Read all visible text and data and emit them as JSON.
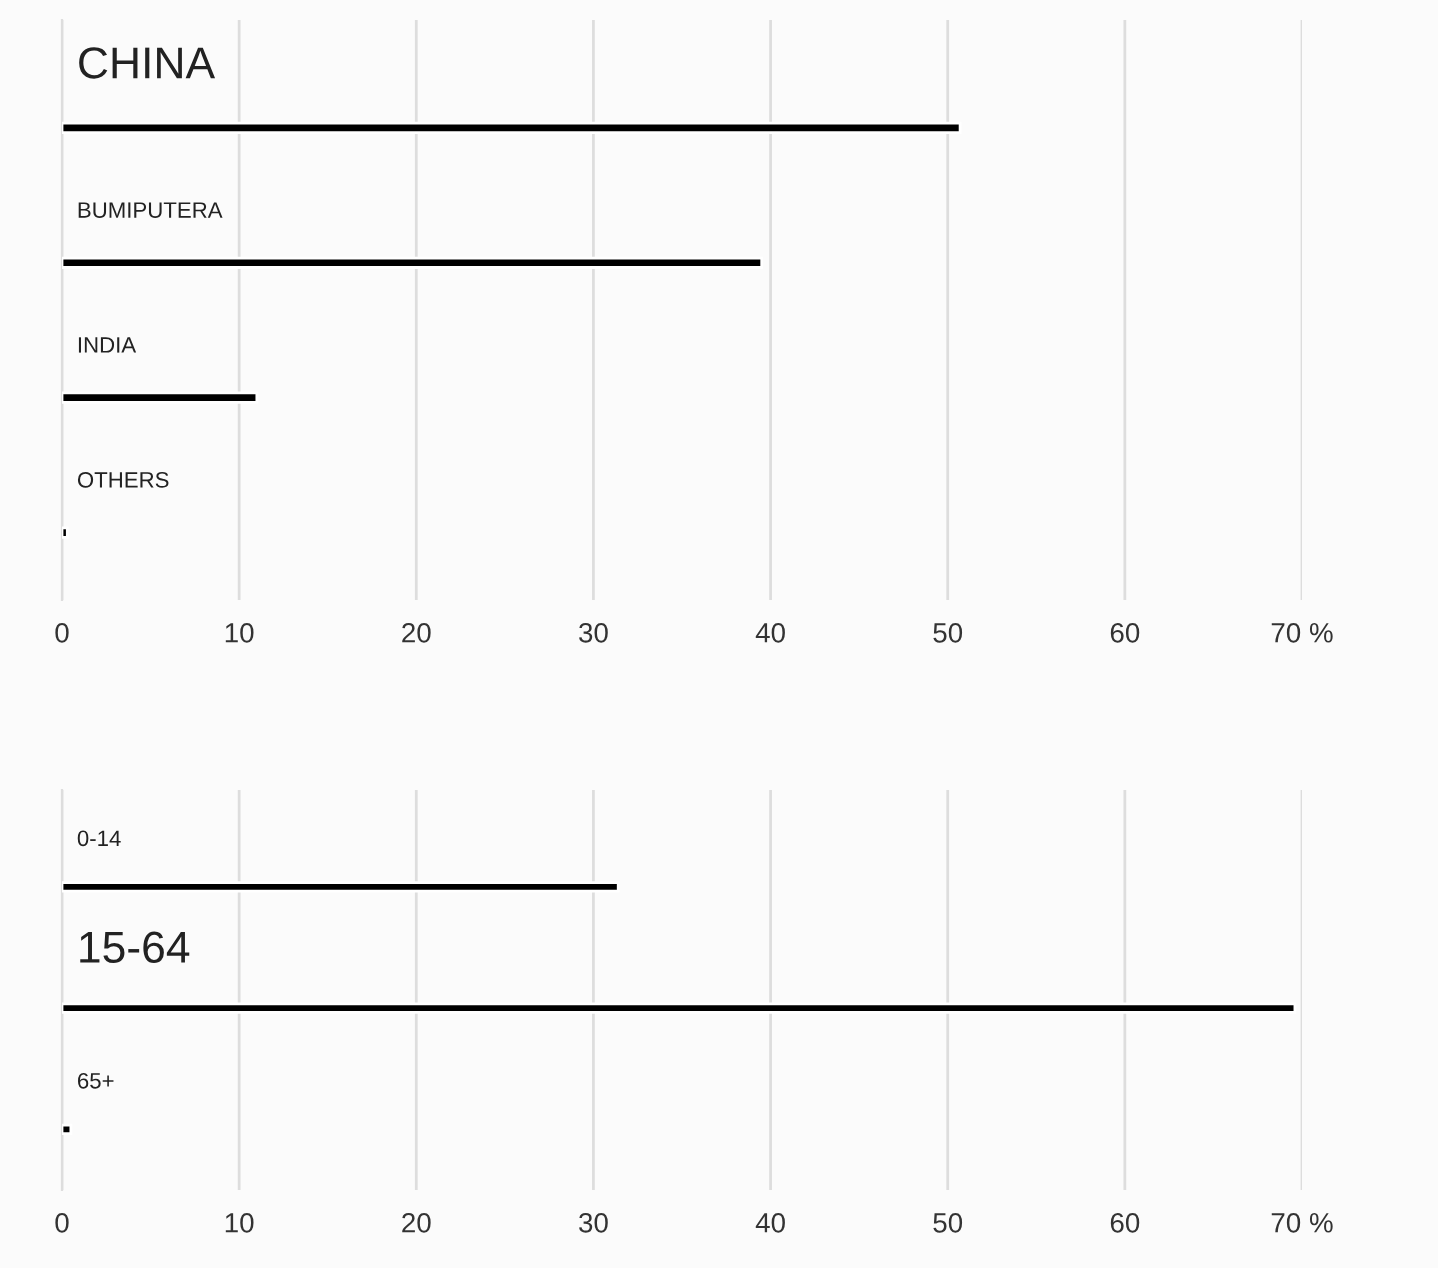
{
  "chart_data": [
    {
      "type": "bar",
      "orientation": "horizontal",
      "categories": [
        "CHINA",
        "BUMIPUTERA",
        "INDIA",
        "OTHERS"
      ],
      "values": [
        50.7,
        39.5,
        11,
        0.3
      ],
      "color": "#000000",
      "xlim": [
        0,
        70
      ],
      "xticks": [
        0,
        10,
        20,
        30,
        40,
        50,
        60,
        {
          "value": 70,
          "label": "70 %"
        }
      ],
      "grid": "x",
      "tick_labels": "x"
    },
    {
      "type": "bar",
      "orientation": "horizontal",
      "categories": [
        "0-14",
        "15-64",
        "65+"
      ],
      "values": [
        31.4,
        69.6,
        0.5
      ],
      "color": "#000000",
      "xlim": [
        0,
        70
      ],
      "xticks": [
        0,
        10,
        20,
        30,
        40,
        50,
        60,
        {
          "value": 70,
          "label": "70 %"
        }
      ],
      "grid": "x",
      "tick_labels": "x"
    }
  ]
}
